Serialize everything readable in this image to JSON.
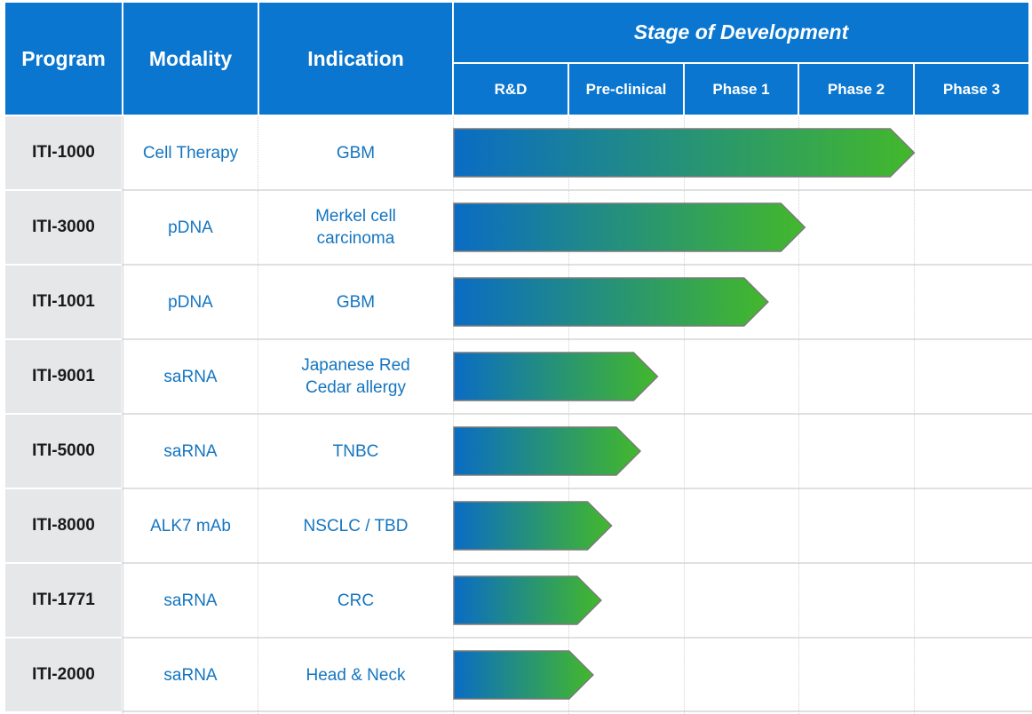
{
  "headers": {
    "program": "Program",
    "modality": "Modality",
    "indication": "Indication",
    "stage": "Stage of Development"
  },
  "chart_data": {
    "type": "bar",
    "title": "Stage of Development",
    "stages": [
      "R&D",
      "Pre-clinical",
      "Phase 1",
      "Phase 2",
      "Phase 3"
    ],
    "xlim": [
      0,
      5
    ],
    "categories": [
      "ITI-1000",
      "ITI-3000",
      "ITI-1001",
      "ITI-9001",
      "ITI-5000",
      "ITI-8000",
      "ITI-1771",
      "ITI-2000"
    ],
    "rows": [
      {
        "program": "ITI-1000",
        "modality": "Cell Therapy",
        "indication": "GBM",
        "progress": 4.0
      },
      {
        "program": "ITI-3000",
        "modality": "pDNA",
        "indication": "Merkel cell carcinoma",
        "progress": 3.05
      },
      {
        "program": "ITI-1001",
        "modality": "pDNA",
        "indication": "GBM",
        "progress": 2.73
      },
      {
        "program": "ITI-9001",
        "modality": "saRNA",
        "indication": "Japanese Red Cedar allergy",
        "progress": 1.77
      },
      {
        "program": "ITI-5000",
        "modality": "saRNA",
        "indication": "TNBC",
        "progress": 1.62
      },
      {
        "program": "ITI-8000",
        "modality": "ALK7 mAb",
        "indication": "NSCLC / TBD",
        "progress": 1.37
      },
      {
        "program": "ITI-1771",
        "modality": "saRNA",
        "indication": "CRC",
        "progress": 1.28
      },
      {
        "program": "ITI-2000",
        "modality": "saRNA",
        "indication": "Head & Neck",
        "progress": 1.21
      }
    ],
    "colors": {
      "start": "#0a6cc4",
      "end": "#43b82b",
      "outline": "#7a7a7a"
    }
  }
}
